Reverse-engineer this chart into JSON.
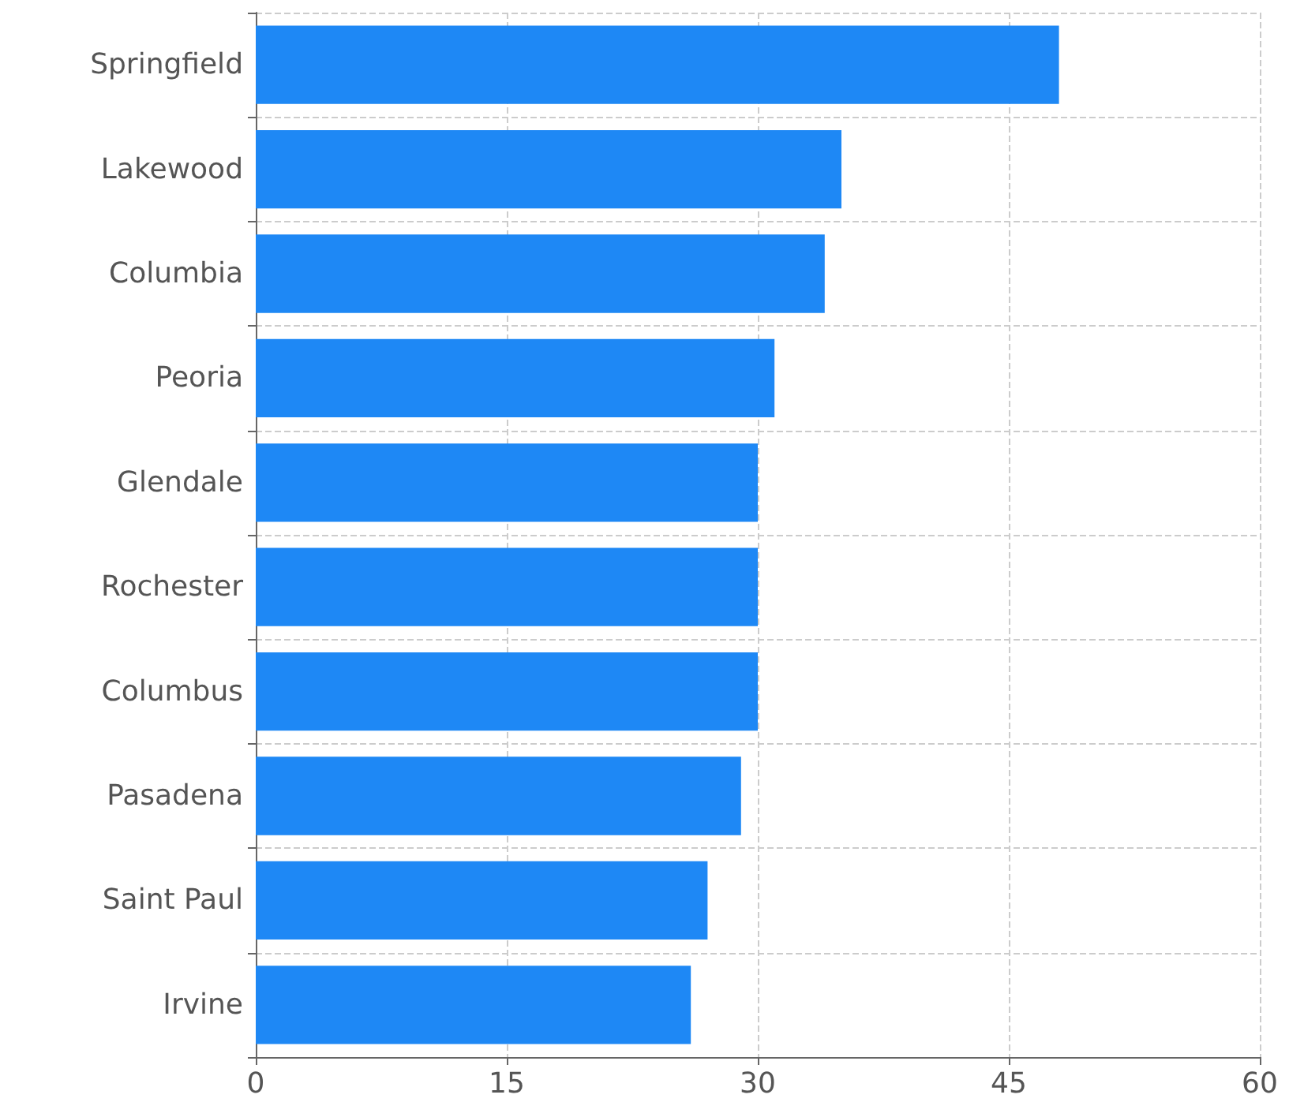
{
  "chart_data": {
    "type": "bar",
    "orientation": "horizontal",
    "categories": [
      "Springfield",
      "Lakewood",
      "Columbia",
      "Peoria",
      "Glendale",
      "Rochester",
      "Columbus",
      "Pasadena",
      "Saint Paul",
      "Irvine"
    ],
    "values": [
      48,
      35,
      34,
      31,
      30,
      30,
      30,
      29,
      27,
      26
    ],
    "color": "#1e88f5",
    "xlim": [
      0,
      60
    ],
    "xticks": [
      0,
      15,
      30,
      45,
      60
    ],
    "grid": true
  }
}
